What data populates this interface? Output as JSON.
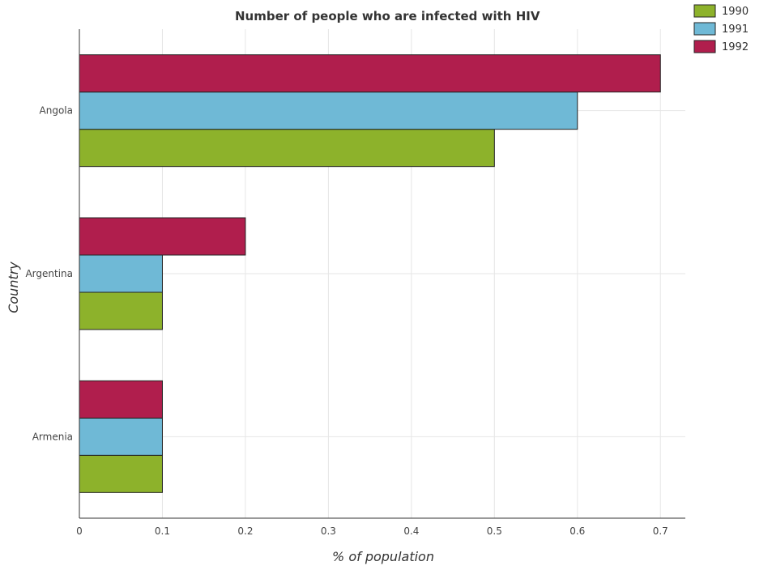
{
  "chart_data": {
    "type": "bar",
    "orientation": "horizontal",
    "title": "Number of people who are infected with HIV",
    "xlabel": "% of population",
    "ylabel": "Country",
    "categories": [
      "Angola",
      "Argentina",
      "Armenia"
    ],
    "series": [
      {
        "name": "1990",
        "color": "#8db22b",
        "values": [
          0.5,
          0.1,
          0.1
        ]
      },
      {
        "name": "1991",
        "color": "#6fb9d6",
        "values": [
          0.6,
          0.1,
          0.1
        ]
      },
      {
        "name": "1992",
        "color": "#b01e4d",
        "values": [
          0.7,
          0.2,
          0.1
        ]
      }
    ],
    "xlim": [
      0,
      0.73
    ],
    "xticks": [
      0,
      0.1,
      0.2,
      0.3,
      0.4,
      0.5,
      0.6,
      0.7
    ],
    "xtick_labels": [
      "0",
      "0.1",
      "0.2",
      "0.3",
      "0.4",
      "0.5",
      "0.6",
      "0.7"
    ],
    "grid": true,
    "legend_position": "top-right"
  }
}
